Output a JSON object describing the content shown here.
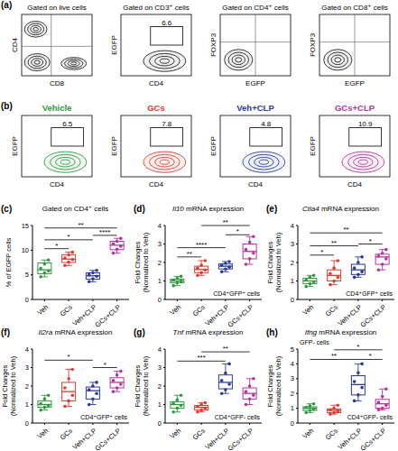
{
  "figure": {
    "flow_panels": [
      {
        "label": "(a)",
        "plots": [
          {
            "title": "Gated on live cells",
            "x_label": "CD8",
            "y_label": "CD4"
          },
          {
            "title": "Gated on CD3⁺ cells",
            "x_label": "CD4",
            "y_label": "EGFP",
            "gate": 6.6
          },
          {
            "title": "Gated on CD4⁺ cells",
            "x_label": "EGFP",
            "y_label": "FOXP3"
          },
          {
            "title": "Gated on CD8⁺ cells",
            "x_label": "EGFP",
            "y_label": "FOXP3"
          }
        ]
      },
      {
        "label": "(b)",
        "plots": [
          {
            "title": "Vehicle",
            "color": "#2e9a3f",
            "x_label": "CD4",
            "y_label": "EGFP",
            "gate": 6.5
          },
          {
            "title": "GCs",
            "color": "#e23b2e",
            "x_label": "CD4",
            "y_label": "EGFP",
            "gate": 7.8
          },
          {
            "title": "Veh+CLP",
            "color": "#2b3a9a",
            "x_label": "CD4",
            "y_label": "EGFP",
            "gate": 4.8
          },
          {
            "title": "GCs+CLP",
            "color": "#b5339f",
            "x_label": "CD4",
            "y_label": "EGFP",
            "gate": 10.9
          }
        ]
      }
    ]
  },
  "chart_data": [
    {
      "type": "box",
      "label": "(c)",
      "annotation_top": "Gated on CD4⁺ cells",
      "y_label": [
        "% of EGFP cells"
      ],
      "categories": [
        "Veh",
        "GCs",
        "Veh+CLP",
        "GCs+CLP"
      ],
      "colors": [
        "#2e9a3f",
        "#e23b2e",
        "#2b3a9a",
        "#b5339f"
      ],
      "ylim": [
        0,
        15
      ],
      "yticks": [
        0,
        5,
        10,
        15
      ],
      "boxes": [
        {
          "min": 4.6,
          "q1": 5.2,
          "median": 6.0,
          "q3": 7.4,
          "max": 8.0
        },
        {
          "min": 6.9,
          "q1": 7.5,
          "median": 8.2,
          "q3": 9.1,
          "max": 9.6
        },
        {
          "min": 3.6,
          "q1": 4.1,
          "median": 4.8,
          "q3": 5.4,
          "max": 5.9
        },
        {
          "min": 9.4,
          "q1": 10.1,
          "median": 11.0,
          "q3": 11.8,
          "max": 12.4
        }
      ],
      "points": [
        [
          4.6,
          5.4,
          5.8,
          6.3,
          7.2,
          8.0
        ],
        [
          6.9,
          7.6,
          8.1,
          8.4,
          9.0,
          9.6
        ],
        [
          3.6,
          4.2,
          4.7,
          5.0,
          5.4,
          5.9
        ],
        [
          9.4,
          10.2,
          10.8,
          11.3,
          11.8,
          12.4
        ]
      ],
      "significance": [
        {
          "from": 0,
          "to": 1,
          "label": "*",
          "y": 10.3
        },
        {
          "from": 0,
          "to": 2,
          "label": "*",
          "y": 12.1
        },
        {
          "from": 2,
          "to": 3,
          "label": "****",
          "y": 13.0
        },
        {
          "from": 0,
          "to": 3,
          "label": "**",
          "y": 14.5
        }
      ]
    },
    {
      "type": "box",
      "label": "(d)",
      "title": "Il10 mRNA expression",
      "annotation_bottom": "CD4⁺GFP⁺ cells",
      "y_label": [
        "Fold Changes",
        "(Normalized to Veh)"
      ],
      "categories": [
        "Veh",
        "GCs",
        "Veh+CLP",
        "GCs+CLP"
      ],
      "colors": [
        "#2e9a3f",
        "#e23b2e",
        "#2b3a9a",
        "#b5339f"
      ],
      "ylim": [
        0,
        4
      ],
      "yticks": [
        0,
        1,
        2,
        3,
        4
      ],
      "boxes": [
        {
          "min": 0.75,
          "q1": 0.9,
          "median": 1.0,
          "q3": 1.1,
          "max": 1.25
        },
        {
          "min": 1.3,
          "q1": 1.45,
          "median": 1.62,
          "q3": 1.8,
          "max": 2.1
        },
        {
          "min": 1.5,
          "q1": 1.65,
          "median": 1.8,
          "q3": 1.92,
          "max": 2.05
        },
        {
          "min": 1.9,
          "q1": 2.2,
          "median": 2.6,
          "q3": 3.0,
          "max": 3.4
        }
      ],
      "points": [
        [
          0.75,
          0.9,
          1.0,
          1.05,
          1.15,
          1.25
        ],
        [
          1.3,
          1.45,
          1.6,
          1.7,
          1.85,
          2.1
        ],
        [
          1.5,
          1.65,
          1.75,
          1.85,
          1.95,
          2.05
        ],
        [
          1.9,
          2.2,
          2.5,
          2.7,
          3.1,
          3.4
        ]
      ],
      "significance": [
        {
          "from": 0,
          "to": 1,
          "label": "**",
          "y": 2.3
        },
        {
          "from": 0,
          "to": 2,
          "label": "****",
          "y": 2.8
        },
        {
          "from": 2,
          "to": 3,
          "label": "*",
          "y": 3.5
        },
        {
          "from": 1,
          "to": 3,
          "label": "**",
          "y": 4.0
        }
      ]
    },
    {
      "type": "box",
      "label": "(e)",
      "title": "Ctla4 mRNA expression",
      "annotation_bottom": "CD4⁺GFP⁺ cells",
      "y_label": [
        "Fold Changes",
        "(Normalized to Veh)"
      ],
      "categories": [
        "Veh",
        "GCs",
        "Veh+CLP",
        "GCs+CLP"
      ],
      "colors": [
        "#2e9a3f",
        "#e23b2e",
        "#2b3a9a",
        "#b5339f"
      ],
      "ylim": [
        0,
        4
      ],
      "yticks": [
        0,
        1,
        2,
        3,
        4
      ],
      "boxes": [
        {
          "min": 0.7,
          "q1": 0.85,
          "median": 1.0,
          "q3": 1.15,
          "max": 1.3
        },
        {
          "min": 0.8,
          "q1": 1.0,
          "median": 1.3,
          "q3": 1.6,
          "max": 2.1
        },
        {
          "min": 1.2,
          "q1": 1.35,
          "median": 1.6,
          "q3": 1.9,
          "max": 2.3
        },
        {
          "min": 1.6,
          "q1": 1.9,
          "median": 2.3,
          "q3": 2.45,
          "max": 2.7
        }
      ],
      "points": [
        [
          0.7,
          0.85,
          0.95,
          1.05,
          1.2,
          1.3
        ],
        [
          0.8,
          1.0,
          1.2,
          1.4,
          1.7,
          2.1
        ],
        [
          1.2,
          1.35,
          1.5,
          1.7,
          2.0,
          2.3
        ],
        [
          1.6,
          1.9,
          2.2,
          2.35,
          2.5,
          2.7
        ]
      ],
      "significance": [
        {
          "from": 0,
          "to": 1,
          "label": "*",
          "y": 2.4
        },
        {
          "from": 0,
          "to": 2,
          "label": "**",
          "y": 2.9
        },
        {
          "from": 2,
          "to": 3,
          "label": "*",
          "y": 3.0
        },
        {
          "from": 0,
          "to": 3,
          "label": "**",
          "y": 3.6
        }
      ]
    },
    {
      "type": "box",
      "label": "(f)",
      "title": "Il2ra mRNA expression",
      "annotation_bottom": "CD4⁺GFP⁺ cells",
      "y_label": [
        "Fold Changes",
        "(Normalized to Veh)"
      ],
      "categories": [
        "Veh",
        "GCs",
        "Veh+CLP",
        "GCs+CLP"
      ],
      "colors": [
        "#2e9a3f",
        "#e23b2e",
        "#2b3a9a",
        "#b5339f"
      ],
      "ylim": [
        0,
        4
      ],
      "yticks": [
        0,
        1,
        2,
        3,
        4
      ],
      "boxes": [
        {
          "min": 0.7,
          "q1": 0.85,
          "median": 1.0,
          "q3": 1.2,
          "max": 1.5
        },
        {
          "min": 0.9,
          "q1": 1.2,
          "median": 1.7,
          "q3": 2.2,
          "max": 2.9
        },
        {
          "min": 1.0,
          "q1": 1.3,
          "median": 1.75,
          "q3": 1.95,
          "max": 2.2
        },
        {
          "min": 1.7,
          "q1": 1.9,
          "median": 2.2,
          "q3": 2.45,
          "max": 2.8
        }
      ],
      "points": [
        [
          0.7,
          0.85,
          0.95,
          1.05,
          1.3,
          1.5
        ],
        [
          0.9,
          1.2,
          1.5,
          1.9,
          2.4,
          2.9
        ],
        [
          1.0,
          1.3,
          1.6,
          1.8,
          2.0,
          2.2
        ],
        [
          1.7,
          1.9,
          2.1,
          2.3,
          2.6,
          2.8
        ]
      ],
      "significance": [
        {
          "from": 2,
          "to": 3,
          "label": "*",
          "y": 3.0
        },
        {
          "from": 0,
          "to": 2,
          "label": "*",
          "y": 3.4
        }
      ]
    },
    {
      "type": "box",
      "label": "(g)",
      "title": "Tnf mRNA expression",
      "annotation_bottom": "CD4⁺GFP- cells",
      "y_label": [
        "Fold Changes",
        "(Normalized to Veh)"
      ],
      "categories": [
        "Veh",
        "GCs",
        "Veh+CLP",
        "GCs+CLP"
      ],
      "colors": [
        "#2e9a3f",
        "#e23b2e",
        "#2b3a9a",
        "#b5339f"
      ],
      "ylim": [
        0,
        4
      ],
      "yticks": [
        0,
        1,
        2,
        3,
        4
      ],
      "boxes": [
        {
          "min": 0.6,
          "q1": 0.8,
          "median": 1.0,
          "q3": 1.15,
          "max": 1.5
        },
        {
          "min": 0.6,
          "q1": 0.7,
          "median": 0.85,
          "q3": 0.95,
          "max": 1.1
        },
        {
          "min": 1.6,
          "q1": 1.85,
          "median": 2.2,
          "q3": 2.6,
          "max": 3.2
        },
        {
          "min": 1.0,
          "q1": 1.3,
          "median": 1.6,
          "q3": 1.9,
          "max": 2.4
        }
      ],
      "points": [
        [
          0.6,
          0.8,
          0.95,
          1.05,
          1.25,
          1.5
        ],
        [
          0.6,
          0.7,
          0.8,
          0.9,
          1.0,
          1.1
        ],
        [
          1.6,
          1.8,
          2.1,
          2.3,
          2.7,
          3.2
        ],
        [
          1.0,
          1.3,
          1.5,
          1.7,
          2.0,
          2.4
        ]
      ],
      "significance": [
        {
          "from": 0,
          "to": 2,
          "label": "***",
          "y": 3.35
        },
        {
          "from": 1,
          "to": 3,
          "label": "**",
          "y": 3.85
        }
      ]
    },
    {
      "type": "box",
      "label": "(h)",
      "title": "Ifng mRNA expression",
      "annotation_top": "GFP- cells",
      "annotation_bottom": "CD4⁺GFP- cells",
      "y_label": [
        "Fold Changes",
        "(Normalized to Veh)"
      ],
      "categories": [
        "Veh",
        "GCs",
        "Veh+CLP",
        "GCs+CLP"
      ],
      "colors": [
        "#2e9a3f",
        "#e23b2e",
        "#2b3a9a",
        "#b5339f"
      ],
      "ylim": [
        0,
        5
      ],
      "yticks": [
        0,
        1,
        2,
        3,
        4,
        5
      ],
      "boxes": [
        {
          "min": 0.7,
          "q1": 0.85,
          "median": 1.0,
          "q3": 1.1,
          "max": 1.3
        },
        {
          "min": 0.6,
          "q1": 0.7,
          "median": 0.85,
          "q3": 0.95,
          "max": 1.2
        },
        {
          "min": 1.5,
          "q1": 1.9,
          "median": 2.6,
          "q3": 3.2,
          "max": 4.0
        },
        {
          "min": 0.9,
          "q1": 1.0,
          "median": 1.3,
          "q3": 1.6,
          "max": 2.3
        }
      ],
      "points": [
        [
          0.7,
          0.85,
          0.95,
          1.05,
          1.15,
          1.3
        ],
        [
          0.6,
          0.7,
          0.8,
          0.9,
          1.0,
          1.2
        ],
        [
          1.5,
          1.9,
          2.4,
          2.8,
          3.4,
          4.0
        ],
        [
          0.9,
          1.0,
          1.2,
          1.4,
          1.8,
          2.3
        ]
      ],
      "significance": [
        {
          "from": 0,
          "to": 2,
          "label": "**",
          "y": 4.3
        },
        {
          "from": 2,
          "to": 3,
          "label": "*",
          "y": 4.3
        },
        {
          "from": 1,
          "to": 3,
          "label": "*",
          "y": 4.95
        }
      ]
    }
  ]
}
